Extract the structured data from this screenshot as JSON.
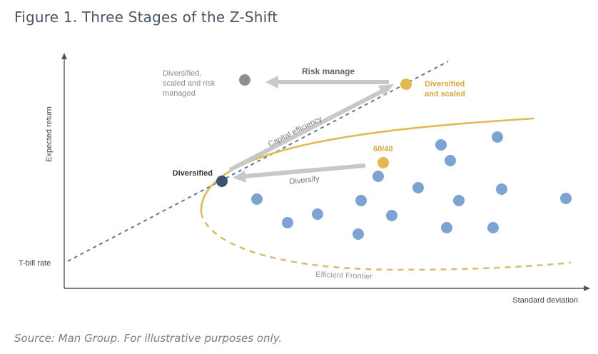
{
  "title": "Figure 1. Three Stages of the Z-Shift",
  "source": "Source: Man Group. For illustrative purposes only.",
  "axes": {
    "y_label": "Expected return",
    "x_label": "Standard deviation",
    "y_tick_label": "T-bill rate"
  },
  "points": {
    "diversified": "Diversified",
    "diversified_scaled": [
      "Diversified",
      "and scaled"
    ],
    "diversified_scaled_risk": [
      "Diversified,",
      "scaled and risk",
      "managed"
    ],
    "sixty_forty": "60/40"
  },
  "arrows": {
    "risk_manage": "Risk manage",
    "capital_efficiency": "Capital efficiency",
    "diversify": "Diversify"
  },
  "curve_label": "Efficient Frontier",
  "colors": {
    "gold": "#e3b84f",
    "gold_dashed": "#d9bd6e",
    "blue_dot": "#7da3d2",
    "navy_dot": "#3d5468",
    "grey_dot": "#8f8f8f",
    "arrow": "#c8c8c8",
    "capital_line": "#5b7a9a"
  }
}
